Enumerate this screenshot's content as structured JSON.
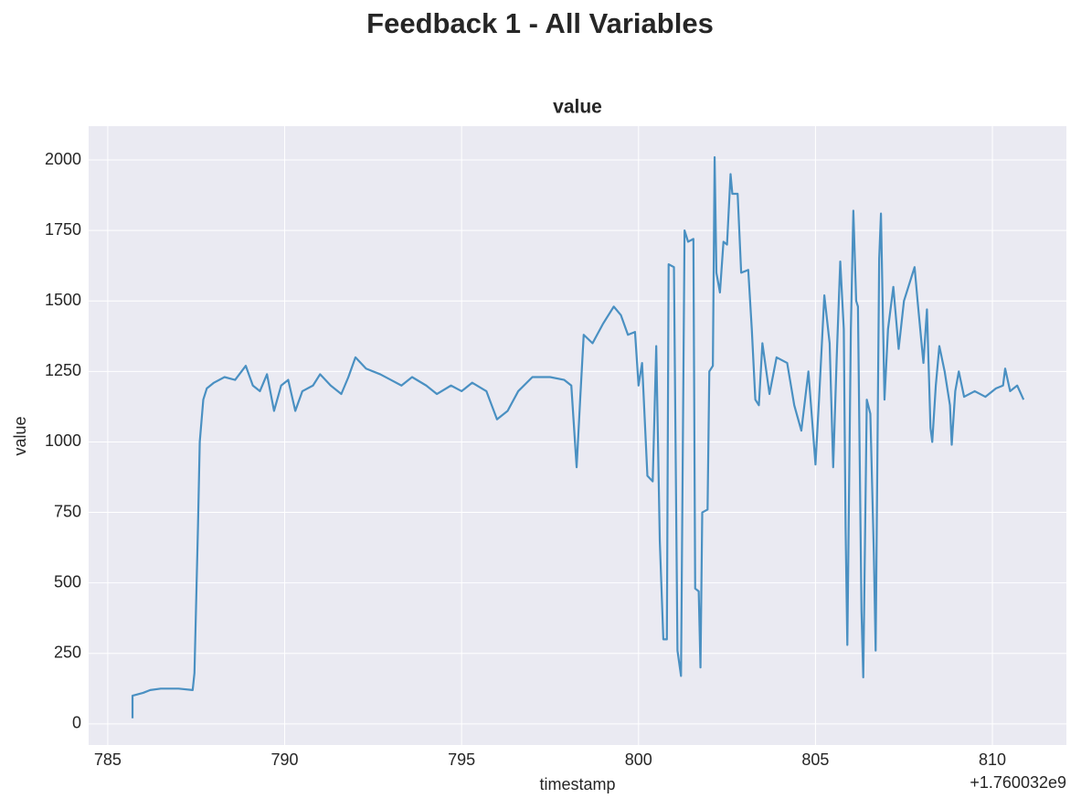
{
  "chart_data": {
    "type": "line",
    "title": "Feedback 1 - All Variables",
    "subtitle": "value",
    "xlabel": "timestamp",
    "ylabel": "value",
    "x_offset_label": "+1.760032e9",
    "grid": true,
    "xlim": [
      784.46,
      812.09
    ],
    "ylim": [
      -75,
      2120
    ],
    "xticks": [
      785,
      790,
      795,
      800,
      805,
      810
    ],
    "yticks": [
      0,
      250,
      500,
      750,
      1000,
      1250,
      1500,
      1750,
      2000
    ],
    "x": [
      785.7,
      785.7,
      786.0,
      786.2,
      786.5,
      787.0,
      787.4,
      787.45,
      787.55,
      787.6,
      787.7,
      787.8,
      788.0,
      788.3,
      788.6,
      788.9,
      789.1,
      789.3,
      789.5,
      789.7,
      789.9,
      790.1,
      790.3,
      790.5,
      790.8,
      791.0,
      791.3,
      791.6,
      791.8,
      792.0,
      792.3,
      792.7,
      793.0,
      793.3,
      793.6,
      794.0,
      794.3,
      794.7,
      795.0,
      795.3,
      795.7,
      796.0,
      796.3,
      796.6,
      797.0,
      797.5,
      797.9,
      798.1,
      798.25,
      798.35,
      798.45,
      798.7,
      799.0,
      799.3,
      799.5,
      799.7,
      799.9,
      800.0,
      800.1,
      800.25,
      800.4,
      800.5,
      800.6,
      800.7,
      800.8,
      800.85,
      801.0,
      801.1,
      801.2,
      801.3,
      801.4,
      801.55,
      801.6,
      801.7,
      801.75,
      801.8,
      801.95,
      802.0,
      802.1,
      802.15,
      802.2,
      802.3,
      802.4,
      802.5,
      802.6,
      802.65,
      802.8,
      802.9,
      803.1,
      803.2,
      803.3,
      803.4,
      803.5,
      803.7,
      803.9,
      804.2,
      804.4,
      804.6,
      804.8,
      805.0,
      805.1,
      805.25,
      805.4,
      805.5,
      805.6,
      805.7,
      805.8,
      805.85,
      805.9,
      806.0,
      806.07,
      806.15,
      806.2,
      806.3,
      806.35,
      806.45,
      806.55,
      806.65,
      806.7,
      806.8,
      806.85,
      806.95,
      807.05,
      807.2,
      807.35,
      807.5,
      807.7,
      807.8,
      807.9,
      808.05,
      808.15,
      808.25,
      808.3,
      808.4,
      808.5,
      808.65,
      808.8,
      808.85,
      808.95,
      809.05,
      809.2,
      809.5,
      809.8,
      810.1,
      810.3,
      810.36,
      810.5,
      810.7,
      810.88
    ],
    "series": [
      {
        "color": "#4a90c2",
        "values": [
          20,
          100,
          110,
          120,
          125,
          125,
          120,
          180,
          700,
          1000,
          1150,
          1190,
          1210,
          1230,
          1220,
          1270,
          1200,
          1180,
          1240,
          1110,
          1200,
          1220,
          1110,
          1180,
          1200,
          1240,
          1200,
          1170,
          1230,
          1300,
          1260,
          1240,
          1220,
          1200,
          1230,
          1200,
          1170,
          1200,
          1180,
          1210,
          1180,
          1080,
          1110,
          1180,
          1230,
          1230,
          1220,
          1200,
          910,
          1150,
          1380,
          1350,
          1420,
          1480,
          1450,
          1380,
          1390,
          1200,
          1280,
          880,
          860,
          1340,
          650,
          300,
          300,
          1630,
          1620,
          260,
          170,
          1750,
          1710,
          1720,
          480,
          470,
          200,
          750,
          760,
          1250,
          1270,
          2010,
          1600,
          1530,
          1710,
          1700,
          1950,
          1880,
          1880,
          1600,
          1610,
          1400,
          1150,
          1130,
          1350,
          1170,
          1300,
          1280,
          1130,
          1040,
          1250,
          920,
          1150,
          1520,
          1350,
          910,
          1300,
          1640,
          1400,
          700,
          280,
          1400,
          1820,
          1500,
          1480,
          400,
          165,
          1150,
          1100,
          600,
          260,
          1650,
          1810,
          1150,
          1400,
          1550,
          1330,
          1500,
          1580,
          1620,
          1480,
          1280,
          1470,
          1050,
          1000,
          1200,
          1340,
          1250,
          1130,
          990,
          1180,
          1250,
          1160,
          1180,
          1160,
          1190,
          1200,
          1260,
          1180,
          1200,
          1150
        ]
      }
    ]
  }
}
